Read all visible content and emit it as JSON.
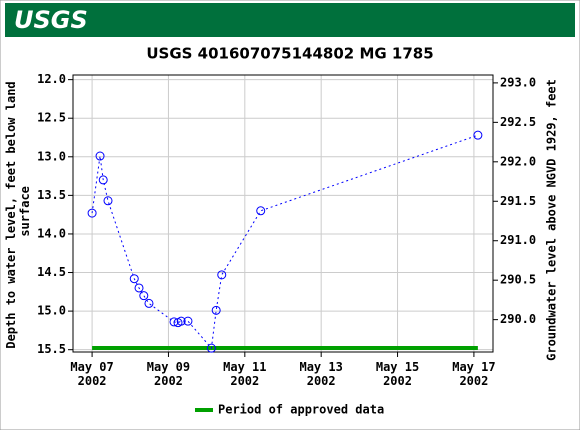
{
  "logo_text": "USGS",
  "chart_data": {
    "type": "line",
    "title": "USGS 401607075144802 MG  1785",
    "y_label": "Depth to water level, feet below land surface",
    "y2_label": "Groundwater level above NGVD 1929, feet",
    "x": [
      "2002-05-07T00:00",
      "2002-05-07T05:00",
      "2002-05-07T07:00",
      "2002-05-07T10:00",
      "2002-05-08T02:30",
      "2002-05-08T05:30",
      "2002-05-08T08:30",
      "2002-05-08T11:45",
      "2002-05-09T03:30",
      "2002-05-09T06:00",
      "2002-05-09T08:00",
      "2002-05-09T12:15",
      "2002-05-10T03:00",
      "2002-05-10T06:00",
      "2002-05-10T09:30",
      "2002-05-11T10:00",
      "2002-05-17T02:30"
    ],
    "series": [
      {
        "name": "Depth to water level",
        "color": "#0000ff",
        "values": [
          13.73,
          12.99,
          13.3,
          13.57,
          14.58,
          14.7,
          14.8,
          14.9,
          15.14,
          15.15,
          15.13,
          15.13,
          15.48,
          14.99,
          14.53,
          13.7,
          12.72
        ]
      }
    ],
    "approved_period": {
      "name": "Period of approved data",
      "color": "#00a000",
      "start": "2002-05-07T00:00",
      "end": "2002-05-17T02:30"
    },
    "xlim": [
      "2002-05-06T12:00",
      "2002-05-17T12:00"
    ],
    "xticks": [
      {
        "value": "2002-05-07",
        "label": "May 07\n2002"
      },
      {
        "value": "2002-05-09",
        "label": "May 09\n2002"
      },
      {
        "value": "2002-05-11",
        "label": "May 11\n2002"
      },
      {
        "value": "2002-05-13",
        "label": "May 13\n2002"
      },
      {
        "value": "2002-05-15",
        "label": "May 15\n2002"
      },
      {
        "value": "2002-05-17",
        "label": "May 17\n2002"
      }
    ],
    "ylim": [
      11.94,
      15.53
    ],
    "y_inverted": true,
    "yticks": [
      {
        "value": 12,
        "label": "12.0"
      },
      12.5,
      {
        "value": 13,
        "label": "13.0"
      },
      13.5,
      {
        "value": 14,
        "label": "14.0"
      },
      14.5,
      {
        "value": 15,
        "label": "15.0"
      },
      15.5
    ],
    "y2lim": [
      289.59,
      293.1
    ],
    "y2ticks": [
      {
        "value": 290,
        "label": "290.0"
      },
      290.5,
      {
        "value": 291,
        "label": "291.0"
      },
      291.5,
      {
        "value": 292,
        "label": "292.0"
      },
      292.5,
      {
        "value": 293,
        "label": "293.0"
      }
    ],
    "grid": true
  }
}
